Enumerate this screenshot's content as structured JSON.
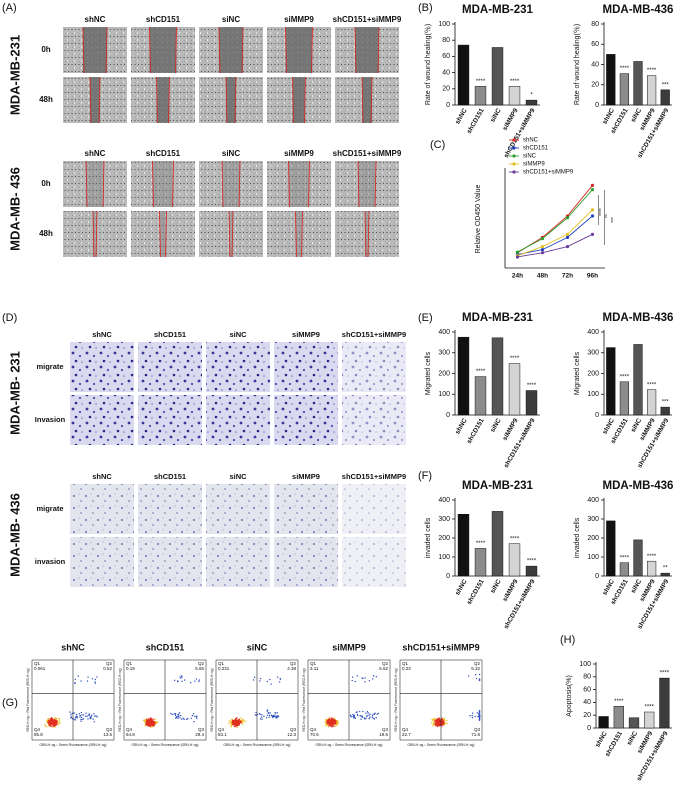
{
  "panel_labels": [
    "(A)",
    "(B)",
    "(C)",
    "(D)",
    "(E)",
    "(F)",
    "(G)",
    "(H)"
  ],
  "wound": {
    "groups": [
      "shNC",
      "shCD151",
      "siNC",
      "siMMP9",
      "shCD151+siMMP9"
    ],
    "blocks": [
      {
        "cell": "MDA-MB-231",
        "rows": [
          "0h",
          "48h"
        ]
      },
      {
        "cell": "MDA-MB- 436",
        "rows": [
          "0h",
          "48h"
        ]
      }
    ]
  },
  "transwell": {
    "groups": [
      "shNC",
      "shCD151",
      "siNC",
      "siMMP9",
      "shCD151+siMMP9"
    ],
    "blocks": [
      {
        "cell": "MDA-MB- 231",
        "rows": [
          "migrate",
          "Invasion"
        ]
      },
      {
        "cell": "MDA-MB- 436",
        "rows": [
          "migrate",
          "invasion"
        ]
      }
    ]
  },
  "flow": {
    "x_label": "GRN-H::og :: Green Fluorescence (GRN-H::og)",
    "y_label": "RED-H::og :: Red Fluorescence (RED-H::og)",
    "panels": [
      {
        "title": "shNC",
        "quadrants": [
          {
            "name": "Q1",
            "value": 0.061
          },
          {
            "name": "Q2",
            "value": 0.52
          },
          {
            "name": "Q3",
            "value": 13.6
          },
          {
            "name": "Q4",
            "value": 85.8
          }
        ]
      },
      {
        "title": "shCD151",
        "quadrants": [
          {
            "name": "Q1",
            "value": 0.19
          },
          {
            "name": "Q2",
            "value": 5.66
          },
          {
            "name": "Q3",
            "value": 29.4
          },
          {
            "name": "Q4",
            "value": 64.8
          }
        ]
      },
      {
        "title": "siNC",
        "quadrants": [
          {
            "name": "Q1",
            "value": 0.231
          },
          {
            "name": "Q2",
            "value": 4.38
          },
          {
            "name": "Q3",
            "value": 12.3
          },
          {
            "name": "Q4",
            "value": 83.1
          }
        ]
      },
      {
        "title": "siMMP9",
        "quadrants": [
          {
            "name": "Q1",
            "value": 3.11
          },
          {
            "name": "Q2",
            "value": 6.62
          },
          {
            "name": "Q3",
            "value": 19.6
          },
          {
            "name": "Q4",
            "value": 70.6
          }
        ]
      },
      {
        "title": "shCD151+siMMP9",
        "quadrants": [
          {
            "name": "Q1",
            "value": 0.23
          },
          {
            "name": "Q2",
            "value": 5.32
          },
          {
            "name": "Q3",
            "value": 71.8
          },
          {
            "name": "Q4",
            "value": 22.7
          }
        ]
      }
    ]
  },
  "chart_data": [
    {
      "type": "bar",
      "title": "MDA-MB-231",
      "y_label": "Rate of wound healing(％)",
      "categories": [
        "shNC",
        "shCD151",
        "siNC",
        "siMMP9",
        "shCD151+siMMP9"
      ],
      "values": [
        74,
        23,
        71,
        23,
        6
      ],
      "annotations": [
        null,
        "****",
        null,
        "****",
        "*"
      ],
      "colors": [
        "#111111",
        "#8c8c8c",
        "#555555",
        "#d4d4d4",
        "#3c3c3c"
      ],
      "ylim": [
        0,
        100
      ],
      "yticks": [
        0,
        20,
        40,
        60,
        80,
        100
      ]
    },
    {
      "type": "bar",
      "title": "MDA-MB-436",
      "y_label": "Rate of wound healing(％)",
      "categories": [
        "shNC",
        "shCD151",
        "siNC",
        "siMMP9",
        "shCD151+siMMP9"
      ],
      "values": [
        50,
        31,
        43,
        29,
        15
      ],
      "annotations": [
        null,
        "****",
        null,
        "****",
        "***"
      ],
      "colors": [
        "#111111",
        "#8c8c8c",
        "#555555",
        "#d4d4d4",
        "#3c3c3c"
      ],
      "ylim": [
        0,
        80
      ],
      "yticks": [
        0,
        20,
        40,
        60,
        80
      ]
    },
    {
      "type": "line",
      "y_label": "Relative OD450 Value",
      "categories": [
        "24h",
        "48h",
        "72h",
        "96h"
      ],
      "ylim": [
        0,
        1.6
      ],
      "series": [
        {
          "name": "shNC",
          "color": "#d62728",
          "values": [
            0.25,
            0.5,
            0.85,
            1.35
          ]
        },
        {
          "name": "shCD151",
          "color": "#1f3fbf",
          "values": [
            0.22,
            0.3,
            0.5,
            0.85
          ]
        },
        {
          "name": "siNC",
          "color": "#2ca02c",
          "values": [
            0.26,
            0.48,
            0.82,
            1.28
          ]
        },
        {
          "name": "siMMP9",
          "color": "#e0c020",
          "values": [
            0.2,
            0.35,
            0.55,
            0.95
          ]
        },
        {
          "name": "shCD151+siMMP9",
          "color": "#6a3d9a",
          "values": [
            0.18,
            0.25,
            0.35,
            0.55
          ]
        }
      ],
      "annotations": [
        "****",
        "**",
        "***"
      ]
    },
    {
      "type": "bar",
      "title": "MDA-MB-231",
      "y_label": "Migrated cells",
      "categories": [
        "shNC",
        "shCD151",
        "siNC",
        "siMMP9",
        "shCD151+siMMP9"
      ],
      "values": [
        375,
        185,
        372,
        248,
        118
      ],
      "annotations": [
        null,
        "****",
        null,
        "****",
        "****"
      ],
      "colors": [
        "#111111",
        "#8c8c8c",
        "#555555",
        "#d4d4d4",
        "#3c3c3c"
      ],
      "ylim": [
        0,
        400
      ],
      "yticks": [
        0,
        100,
        200,
        300,
        400
      ]
    },
    {
      "type": "bar",
      "title": "MDA-MB-436",
      "y_label": "Migrated cells",
      "categories": [
        "shNC",
        "shCD151",
        "siNC",
        "siMMP9",
        "shCD151+siMMP9"
      ],
      "values": [
        325,
        160,
        340,
        122,
        38
      ],
      "annotations": [
        null,
        "****",
        null,
        "****",
        "***"
      ],
      "colors": [
        "#111111",
        "#8c8c8c",
        "#555555",
        "#d4d4d4",
        "#3c3c3c"
      ],
      "ylim": [
        0,
        400
      ],
      "yticks": [
        0,
        100,
        200,
        300,
        400
      ]
    },
    {
      "type": "bar",
      "title": "MDA-MB-231",
      "y_label": "invaded cells",
      "categories": [
        "shNC",
        "shCD151",
        "siNC",
        "siMMP9",
        "shCD151+siMMP9"
      ],
      "values": [
        325,
        145,
        340,
        170,
        52
      ],
      "annotations": [
        null,
        "****",
        null,
        "****",
        "****"
      ],
      "colors": [
        "#111111",
        "#8c8c8c",
        "#555555",
        "#d4d4d4",
        "#3c3c3c"
      ],
      "ylim": [
        0,
        400
      ],
      "yticks": [
        0,
        100,
        200,
        300,
        400
      ]
    },
    {
      "type": "bar",
      "title": "MDA-MB-436",
      "y_label": "invaded cells",
      "categories": [
        "shNC",
        "shCD151",
        "siNC",
        "siMMP9",
        "shCD151+siMMP9"
      ],
      "values": [
        290,
        70,
        190,
        78,
        15
      ],
      "annotations": [
        null,
        "****",
        null,
        "****",
        "**"
      ],
      "colors": [
        "#111111",
        "#8c8c8c",
        "#555555",
        "#d4d4d4",
        "#3c3c3c"
      ],
      "ylim": [
        0,
        400
      ],
      "yticks": [
        0,
        100,
        200,
        300,
        400
      ]
    },
    {
      "type": "bar",
      "y_label": "Apoptosis(%)",
      "categories": [
        "shNC",
        "shCD151",
        "siNC",
        "siMMP9",
        "shCD151+siMMP9"
      ],
      "values": [
        18,
        34,
        16,
        25,
        78
      ],
      "annotations": [
        null,
        "****",
        null,
        "****",
        "****"
      ],
      "colors": [
        "#111111",
        "#8c8c8c",
        "#555555",
        "#d4d4d4",
        "#3c3c3c"
      ],
      "ylim": [
        0,
        100
      ],
      "yticks": [
        0,
        20,
        40,
        60,
        80,
        100
      ]
    }
  ]
}
